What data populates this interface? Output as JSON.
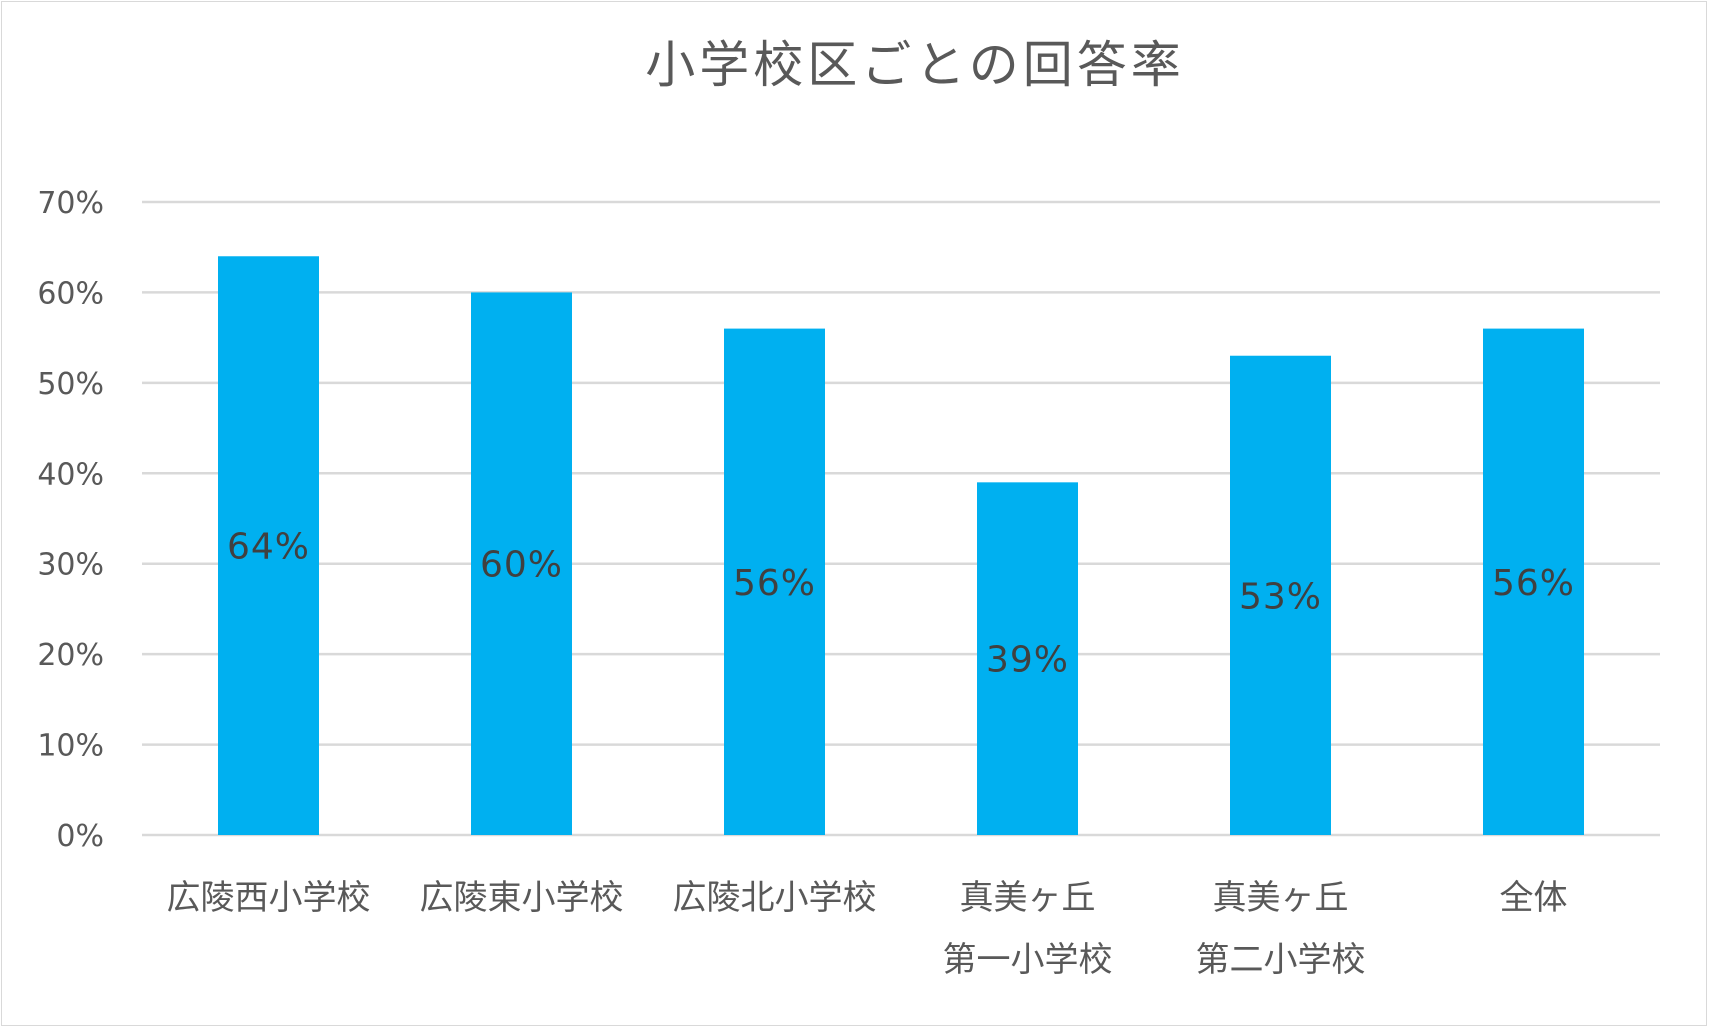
{
  "chart_data": {
    "type": "bar",
    "title": "小学校区ごとの回答率",
    "categories": [
      [
        "広陵西小学校"
      ],
      [
        "広陵東小学校"
      ],
      [
        "広陵北小学校"
      ],
      [
        "真美ヶ丘",
        "第一小学校"
      ],
      [
        "真美ヶ丘",
        "第二小学校"
      ],
      [
        "全体"
      ]
    ],
    "values": [
      64,
      60,
      56,
      39,
      53,
      56
    ],
    "data_labels": [
      "64%",
      "60%",
      "56%",
      "39%",
      "53%",
      "56%"
    ],
    "ylim": [
      0,
      70
    ],
    "yticks": [
      0,
      10,
      20,
      30,
      40,
      50,
      60,
      70
    ],
    "ytick_labels": [
      "0%",
      "10%",
      "20%",
      "30%",
      "40%",
      "50%",
      "60%",
      "70%"
    ],
    "xlabel": "",
    "ylabel": "",
    "grid": true,
    "legend": "none",
    "colors": {
      "bar": "#00b0f0",
      "grid": "#d9d9d9",
      "text": "#595959",
      "label": "#404040"
    }
  }
}
